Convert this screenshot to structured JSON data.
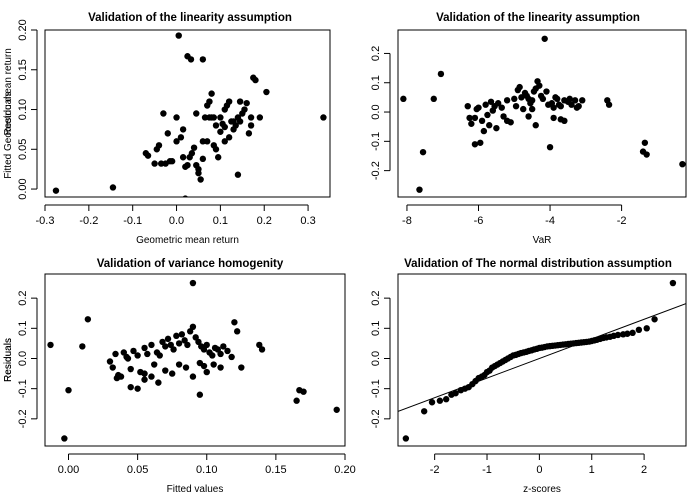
{
  "chart_data": [
    {
      "type": "scatter",
      "title": "Validation of the linearity assumption",
      "xlabel": "Geometric mean return",
      "ylabel": "Fitted Geometric mean return",
      "xlim": [
        -0.3,
        0.35
      ],
      "ylim": [
        -0.01,
        0.2
      ],
      "xticks": [
        -0.3,
        -0.2,
        -0.1,
        0.0,
        0.1,
        0.2,
        0.3
      ],
      "xtick_labels": [
        "-0.3",
        "-0.2",
        "-0.1",
        "0.0",
        "0.1",
        "0.2",
        "0.3"
      ],
      "yticks": [
        0.0,
        0.05,
        0.1,
        0.15,
        0.2
      ],
      "ytick_labels": [
        "0.00",
        "0.05",
        "0.10",
        "0.15",
        "0.20"
      ],
      "x": [
        -0.275,
        -0.145,
        0.335,
        0.005,
        0.025,
        0.033,
        0.06,
        -0.07,
        -0.065,
        -0.045,
        -0.04,
        -0.03,
        -0.02,
        -0.015,
        -0.01,
        -0.025,
        -0.035,
        -0.05,
        0.0,
        0.01,
        0.015,
        0.02,
        0.03,
        0.035,
        0.04,
        0.045,
        0.05,
        0.055,
        0.06,
        0.065,
        0.07,
        0.075,
        0.08,
        0.085,
        0.09,
        0.095,
        0.1,
        0.105,
        0.11,
        0.115,
        0.12,
        0.125,
        0.13,
        0.135,
        0.14,
        0.145,
        0.15,
        0.155,
        0.16,
        0.165,
        0.17,
        0.175,
        0.18,
        0.19,
        0.205,
        0.17,
        0.07,
        0.075,
        0.085,
        0.08,
        0.14,
        0.12,
        0.1,
        0.11,
        0.13,
        0.0,
        0.015,
        0.02,
        0.05,
        0.025,
        0.145,
        0.11,
        0.09,
        0.045,
        0.06
      ],
      "y": [
        -0.002,
        0.002,
        0.09,
        0.193,
        0.167,
        0.163,
        0.163,
        0.045,
        0.042,
        0.05,
        0.055,
        0.095,
        0.07,
        0.035,
        0.035,
        0.032,
        0.032,
        0.032,
        0.06,
        0.065,
        0.04,
        0.028,
        0.04,
        0.045,
        0.052,
        0.03,
        0.02,
        0.012,
        0.038,
        0.09,
        0.06,
        0.09,
        0.09,
        0.055,
        0.05,
        0.04,
        0.09,
        0.082,
        0.1,
        0.105,
        0.11,
        0.085,
        0.075,
        0.08,
        0.09,
        0.085,
        0.095,
        0.1,
        0.108,
        0.07,
        0.09,
        0.14,
        0.137,
        0.09,
        0.122,
        0.08,
        0.105,
        0.11,
        0.09,
        0.12,
        0.018,
        0.065,
        0.072,
        0.06,
        0.085,
        0.09,
        0.075,
        -0.012,
        0.025,
        0.03,
        0.11,
        0.078,
        0.08,
        0.095,
        0.06
      ]
    },
    {
      "type": "scatter",
      "title": "Validation of the linearity assumption",
      "xlabel": "VaR",
      "ylabel": "Residuals",
      "xlim": [
        -8.25,
        -0.2
      ],
      "ylim": [
        -0.29,
        0.28
      ],
      "xticks": [
        -8,
        -6,
        -4,
        -2
      ],
      "xtick_labels": [
        "-8",
        "-6",
        "-4",
        "-2"
      ],
      "yticks": [
        -0.2,
        -0.1,
        0.0,
        0.1,
        0.2
      ],
      "ytick_labels": [
        "-0.2",
        "-0.1",
        "0.0",
        "0.1",
        "0.2"
      ],
      "x": [
        -8.1,
        -7.65,
        -7.55,
        -7.25,
        -7.05,
        -6.1,
        -5.95,
        -5.85,
        -5.7,
        -5.5,
        -4.15,
        -4.85,
        -4.0,
        -1.4,
        -1.35,
        -1.3,
        -0.3,
        -2.4,
        -2.35,
        -6.3,
        -6.25,
        -6.2,
        -6.05,
        -6.0,
        -5.8,
        -5.75,
        -5.65,
        -5.6,
        -5.55,
        -5.45,
        -5.35,
        -5.2,
        -5.1,
        -5.0,
        -4.95,
        -4.9,
        -4.8,
        -4.75,
        -4.7,
        -4.65,
        -4.6,
        -4.55,
        -4.5,
        -4.45,
        -4.4,
        -4.35,
        -4.3,
        -4.25,
        -4.2,
        -4.1,
        -4.05,
        -3.95,
        -3.9,
        -3.85,
        -3.8,
        -3.75,
        -3.7,
        -3.6,
        -3.5,
        -3.45,
        -3.4,
        -3.3,
        -3.25,
        -3.2,
        -3.1,
        -6.1,
        -5.9,
        -5.3,
        -5.2,
        -4.6,
        -4.5,
        -4.4,
        -3.9,
        -3.7,
        -3.6
      ],
      "y": [
        0.045,
        -0.265,
        -0.137,
        0.045,
        0.13,
        -0.11,
        -0.105,
        -0.065,
        -0.045,
        -0.055,
        0.25,
        0.085,
        -0.12,
        -0.135,
        -0.105,
        -0.145,
        -0.178,
        0.04,
        0.025,
        0.02,
        -0.02,
        -0.04,
        0.01,
        0.015,
        0.025,
        -0.01,
        0.035,
        0.005,
        0.02,
        0.03,
        0.015,
        0.04,
        -0.035,
        0.045,
        0.02,
        0.075,
        0.05,
        0.01,
        0.065,
        0.055,
        0.045,
        0.03,
        0.04,
        0.07,
        0.08,
        0.105,
        0.09,
        0.055,
        0.045,
        0.07,
        0.025,
        0.03,
        0.015,
        0.05,
        0.045,
        0.025,
        0.02,
        0.04,
        0.035,
        0.045,
        0.025,
        0.04,
        0.015,
        0.02,
        0.04,
        -0.02,
        -0.03,
        -0.015,
        -0.03,
        -0.015,
        0.01,
        -0.045,
        -0.02,
        -0.025,
        -0.03
      ]
    },
    {
      "type": "scatter",
      "title": "Validation of variance homogenity",
      "xlabel": "Fitted values",
      "ylabel": "Residuals",
      "xlim": [
        -0.017,
        0.2
      ],
      "ylim": [
        -0.29,
        0.28
      ],
      "xticks": [
        0.0,
        0.05,
        0.1,
        0.15,
        0.2
      ],
      "xtick_labels": [
        "0.00",
        "0.05",
        "0.10",
        "0.15",
        "0.20"
      ],
      "yticks": [
        -0.2,
        -0.1,
        0.0,
        0.1,
        0.2
      ],
      "ytick_labels": [
        "-0.2",
        "-0.1",
        "0.0",
        "0.1",
        "0.2"
      ],
      "x": [
        -0.013,
        0.0,
        -0.003,
        0.01,
        0.014,
        0.09,
        0.17,
        0.165,
        0.167,
        0.194,
        0.138,
        0.14,
        0.095,
        0.03,
        0.032,
        0.034,
        0.036,
        0.04,
        0.042,
        0.045,
        0.047,
        0.05,
        0.052,
        0.055,
        0.057,
        0.06,
        0.062,
        0.064,
        0.066,
        0.068,
        0.07,
        0.072,
        0.074,
        0.076,
        0.078,
        0.08,
        0.082,
        0.084,
        0.086,
        0.088,
        0.09,
        0.092,
        0.094,
        0.096,
        0.098,
        0.1,
        0.102,
        0.104,
        0.106,
        0.108,
        0.11,
        0.112,
        0.115,
        0.118,
        0.12,
        0.122,
        0.125,
        0.035,
        0.045,
        0.05,
        0.055,
        0.06,
        0.065,
        0.07,
        0.075,
        0.08,
        0.085,
        0.09,
        0.095,
        0.1,
        0.105,
        0.11,
        0.038,
        0.043,
        0.055,
        0.098
      ],
      "y": [
        0.045,
        -0.105,
        -0.265,
        0.04,
        0.13,
        0.25,
        -0.11,
        -0.14,
        -0.105,
        -0.17,
        0.045,
        0.03,
        -0.12,
        -0.01,
        -0.03,
        0.015,
        -0.055,
        0.02,
        0.005,
        -0.035,
        0.025,
        0.01,
        -0.045,
        0.035,
        0.015,
        0.045,
        -0.02,
        0.02,
        0.01,
        0.055,
        0.04,
        0.065,
        0.045,
        0.03,
        0.075,
        0.05,
        0.08,
        0.06,
        0.045,
        0.09,
        0.105,
        0.07,
        0.055,
        0.04,
        0.03,
        0.045,
        0.02,
        0.01,
        0.035,
        0.03,
        0.015,
        0.04,
        0.025,
        0.005,
        0.12,
        0.09,
        -0.03,
        -0.065,
        -0.095,
        -0.1,
        -0.07,
        -0.06,
        -0.08,
        -0.04,
        -0.05,
        -0.02,
        -0.03,
        -0.06,
        -0.015,
        -0.045,
        -0.02,
        -0.03,
        -0.06,
        0.0,
        -0.05,
        -0.025
      ]
    },
    {
      "type": "scatter",
      "title": "Validation of The normal distribution assumption",
      "xlabel": "z-scores",
      "ylabel": "Residuals",
      "xlim": [
        -2.7,
        2.8
      ],
      "ylim": [
        -0.29,
        0.28
      ],
      "xticks": [
        -2,
        -1,
        0,
        1,
        2
      ],
      "xtick_labels": [
        "-2",
        "-1",
        "0",
        "1",
        "2"
      ],
      "yticks": [
        -0.2,
        -0.1,
        0.0,
        0.1,
        0.2
      ],
      "ytick_labels": [
        "-0.2",
        "-0.1",
        "0.0",
        "0.1",
        "0.2"
      ],
      "reference_line": {
        "intercept": 0.0,
        "slope": 0.065
      },
      "x": [
        -2.55,
        -2.2,
        -2.05,
        -1.9,
        -1.78,
        -1.68,
        -1.6,
        -1.5,
        -1.42,
        -1.35,
        -1.28,
        -1.22,
        -1.16,
        -1.1,
        -1.05,
        -1.0,
        -0.95,
        -0.9,
        -0.85,
        -0.8,
        -0.75,
        -0.7,
        -0.65,
        -0.6,
        -0.55,
        -0.5,
        -0.45,
        -0.4,
        -0.35,
        -0.3,
        -0.25,
        -0.2,
        -0.15,
        -0.1,
        -0.05,
        0.0,
        0.05,
        0.1,
        0.15,
        0.2,
        0.25,
        0.3,
        0.35,
        0.4,
        0.45,
        0.5,
        0.55,
        0.6,
        0.65,
        0.7,
        0.75,
        0.8,
        0.85,
        0.9,
        0.95,
        1.0,
        1.05,
        1.1,
        1.16,
        1.22,
        1.28,
        1.35,
        1.42,
        1.5,
        1.6,
        1.68,
        1.78,
        1.9,
        2.05,
        2.2,
        2.55
      ],
      "y": [
        -0.265,
        -0.175,
        -0.145,
        -0.14,
        -0.135,
        -0.12,
        -0.115,
        -0.105,
        -0.1,
        -0.095,
        -0.085,
        -0.075,
        -0.065,
        -0.06,
        -0.055,
        -0.045,
        -0.04,
        -0.03,
        -0.025,
        -0.02,
        -0.015,
        -0.01,
        -0.005,
        0.0,
        0.005,
        0.01,
        0.012,
        0.015,
        0.018,
        0.02,
        0.022,
        0.025,
        0.027,
        0.03,
        0.032,
        0.035,
        0.036,
        0.038,
        0.04,
        0.041,
        0.042,
        0.043,
        0.044,
        0.045,
        0.046,
        0.047,
        0.048,
        0.049,
        0.05,
        0.051,
        0.052,
        0.053,
        0.054,
        0.055,
        0.056,
        0.058,
        0.06,
        0.062,
        0.065,
        0.068,
        0.07,
        0.072,
        0.075,
        0.078,
        0.08,
        0.082,
        0.085,
        0.095,
        0.1,
        0.13,
        0.25
      ]
    }
  ]
}
